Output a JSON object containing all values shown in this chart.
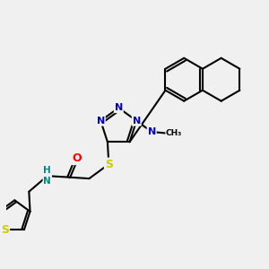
{
  "background_color": "#f0f0f0",
  "atom_colors": {
    "C": "#000000",
    "N": "#0000cc",
    "O": "#ff0000",
    "S": "#cccc00",
    "H": "#008888"
  },
  "bond_color": "#000000",
  "bond_width": 1.5,
  "fig_size": [
    3.0,
    3.0
  ],
  "dpi": 100,
  "xlim": [
    0,
    10
  ],
  "ylim": [
    1,
    10
  ]
}
